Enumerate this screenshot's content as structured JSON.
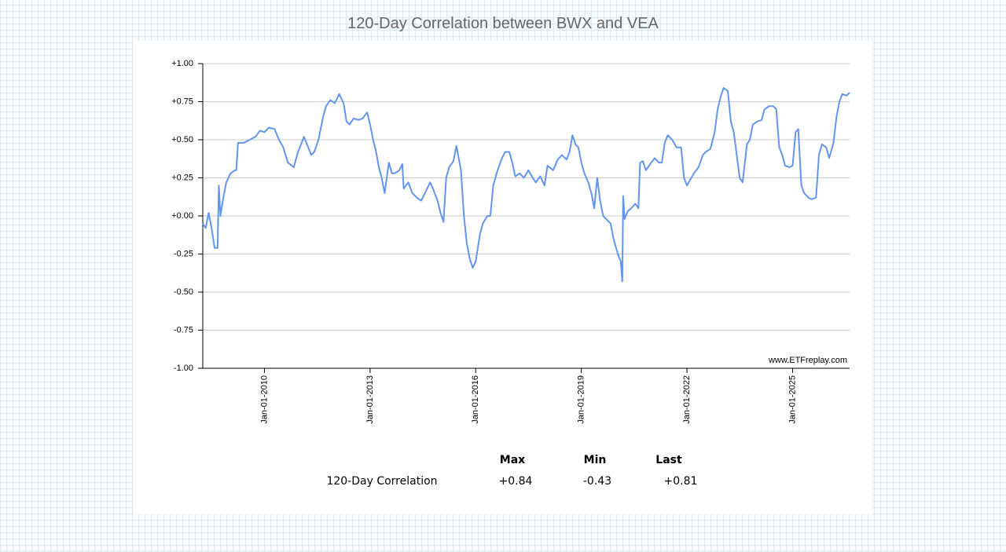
{
  "chart_data": {
    "type": "line",
    "title": "120-Day Correlation between BWX and VEA",
    "annotation": "www.ETFreplay.com",
    "color": "#6495ed",
    "grid": true,
    "xlim": [
      "2008-04-01",
      "2026-08-15"
    ],
    "xticks": [
      {
        "value": "2010-01-01",
        "label": "Jan-01-2010"
      },
      {
        "value": "2013-01-01",
        "label": "Jan-01-2013"
      },
      {
        "value": "2016-01-01",
        "label": "Jan-01-2016"
      },
      {
        "value": "2019-01-01",
        "label": "Jan-01-2019"
      },
      {
        "value": "2022-01-01",
        "label": "Jan-01-2022"
      },
      {
        "value": "2025-01-01",
        "label": "Jan-01-2025"
      }
    ],
    "ylim": [
      -1,
      1
    ],
    "yticks": [
      {
        "value": 1,
        "label": "+1.00"
      },
      {
        "value": 0.75,
        "label": "+0.75"
      },
      {
        "value": 0.5,
        "label": "+0.50"
      },
      {
        "value": 0.25,
        "label": "+0.25"
      },
      {
        "value": 0,
        "label": "+0.00"
      },
      {
        "value": -0.25,
        "label": "-0.25"
      },
      {
        "value": -0.5,
        "label": "-0.50"
      },
      {
        "value": -0.75,
        "label": "-0.75"
      },
      {
        "value": -1,
        "label": "-1.00"
      }
    ],
    "x": [
      "2008-04-01",
      "2008-05-01",
      "2008-06-01",
      "2008-07-01",
      "2008-08-01",
      "2008-09-01",
      "2008-09-15",
      "2008-10-01",
      "2008-11-01",
      "2008-12-01",
      "2009-01-15",
      "2009-03-01",
      "2009-03-15",
      "2009-04-01",
      "2009-06-01",
      "2009-08-01",
      "2009-10-01",
      "2009-11-15",
      "2010-01-01",
      "2010-02-15",
      "2010-04-15",
      "2010-06-01",
      "2010-07-15",
      "2010-09-01",
      "2010-11-01",
      "2010-12-15",
      "2011-02-15",
      "2011-04-01",
      "2011-05-01",
      "2011-06-01",
      "2011-07-15",
      "2011-09-01",
      "2011-10-01",
      "2011-11-15",
      "2012-01-01",
      "2012-02-15",
      "2012-04-01",
      "2012-05-01",
      "2012-06-01",
      "2012-07-15",
      "2012-09-01",
      "2012-10-15",
      "2012-12-01",
      "2013-01-01",
      "2013-02-01",
      "2013-03-01",
      "2013-04-01",
      "2013-05-01",
      "2013-06-01",
      "2013-07-15",
      "2013-08-15",
      "2013-09-15",
      "2013-11-01",
      "2013-12-01",
      "2013-12-15",
      "2014-02-01",
      "2014-03-15",
      "2014-05-01",
      "2014-06-15",
      "2014-08-01",
      "2014-09-15",
      "2014-10-15",
      "2014-12-01",
      "2015-01-01",
      "2015-02-01",
      "2015-03-01",
      "2015-04-01",
      "2015-05-15",
      "2015-06-15",
      "2015-08-01",
      "2015-09-01",
      "2015-10-01",
      "2015-11-01",
      "2015-12-01",
      "2016-01-01",
      "2016-02-15",
      "2016-03-15",
      "2016-05-01",
      "2016-06-01",
      "2016-07-01",
      "2016-08-15",
      "2016-10-01",
      "2016-11-01",
      "2016-12-15",
      "2017-01-15",
      "2017-02-15",
      "2017-04-01",
      "2017-05-15",
      "2017-07-01",
      "2017-08-15",
      "2017-09-15",
      "2017-11-01",
      "2017-12-15",
      "2018-01-15",
      "2018-03-15",
      "2018-05-01",
      "2018-06-15",
      "2018-08-01",
      "2018-09-01",
      "2018-10-01",
      "2018-11-01",
      "2018-12-01",
      "2019-01-01",
      "2019-02-01",
      "2019-03-15",
      "2019-04-15",
      "2019-05-15",
      "2019-06-15",
      "2019-07-15",
      "2019-08-15",
      "2019-09-15",
      "2019-11-01",
      "2019-12-01",
      "2020-01-15",
      "2020-02-15",
      "2020-03-01",
      "2020-03-10",
      "2020-03-25",
      "2020-04-25",
      "2020-06-01",
      "2020-07-15",
      "2020-08-15",
      "2020-09-01",
      "2020-10-01",
      "2020-11-01",
      "2020-12-15",
      "2021-02-01",
      "2021-03-15",
      "2021-04-15",
      "2021-05-15",
      "2021-06-15",
      "2021-08-01",
      "2021-09-15",
      "2021-11-01",
      "2021-12-01",
      "2022-01-01",
      "2022-02-15",
      "2022-03-15",
      "2022-05-01",
      "2022-06-15",
      "2022-07-15",
      "2022-09-01",
      "2022-10-15",
      "2022-11-15",
      "2022-12-15",
      "2023-01-15",
      "2023-03-01",
      "2023-04-01",
      "2023-05-01",
      "2023-06-01",
      "2023-07-01",
      "2023-08-01",
      "2023-09-15",
      "2023-10-15",
      "2023-11-15",
      "2024-01-01",
      "2024-02-15",
      "2024-03-15",
      "2024-05-01",
      "2024-06-15",
      "2024-07-15",
      "2024-08-15",
      "2024-09-15",
      "2024-10-15",
      "2024-12-01",
      "2025-01-01",
      "2025-02-01",
      "2025-03-01",
      "2025-04-01",
      "2025-05-01",
      "2025-06-15",
      "2025-07-15",
      "2025-09-01",
      "2025-10-01",
      "2025-11-01",
      "2025-12-15",
      "2026-01-15",
      "2026-03-01",
      "2026-04-01",
      "2026-05-01",
      "2026-06-01",
      "2026-07-15",
      "2026-08-15"
    ],
    "values": [
      -0.05,
      -0.08,
      0.02,
      -0.08,
      -0.21,
      -0.21,
      0.2,
      0.0,
      0.12,
      0.22,
      0.28,
      0.3,
      0.3,
      0.48,
      0.48,
      0.5,
      0.52,
      0.56,
      0.55,
      0.58,
      0.57,
      0.5,
      0.45,
      0.35,
      0.32,
      0.42,
      0.52,
      0.45,
      0.4,
      0.42,
      0.5,
      0.65,
      0.72,
      0.76,
      0.74,
      0.8,
      0.74,
      0.62,
      0.6,
      0.64,
      0.63,
      0.64,
      0.68,
      0.6,
      0.5,
      0.43,
      0.32,
      0.25,
      0.15,
      0.35,
      0.28,
      0.28,
      0.3,
      0.34,
      0.18,
      0.22,
      0.15,
      0.12,
      0.1,
      0.16,
      0.22,
      0.18,
      0.1,
      0.02,
      -0.04,
      0.25,
      0.32,
      0.36,
      0.46,
      0.3,
      0.0,
      -0.18,
      -0.28,
      -0.34,
      -0.3,
      -0.12,
      -0.05,
      0.0,
      0.0,
      0.2,
      0.3,
      0.38,
      0.42,
      0.42,
      0.35,
      0.26,
      0.28,
      0.25,
      0.3,
      0.25,
      0.22,
      0.26,
      0.2,
      0.33,
      0.3,
      0.37,
      0.4,
      0.37,
      0.42,
      0.53,
      0.47,
      0.45,
      0.35,
      0.28,
      0.22,
      0.15,
      0.05,
      0.25,
      0.1,
      0.0,
      -0.02,
      -0.05,
      -0.15,
      -0.25,
      -0.3,
      -0.43,
      0.13,
      -0.02,
      0.03,
      0.05,
      0.08,
      0.05,
      0.35,
      0.36,
      0.3,
      0.34,
      0.38,
      0.35,
      0.35,
      0.48,
      0.53,
      0.5,
      0.45,
      0.45,
      0.25,
      0.2,
      0.25,
      0.28,
      0.32,
      0.4,
      0.42,
      0.44,
      0.55,
      0.7,
      0.78,
      0.84,
      0.82,
      0.62,
      0.55,
      0.4,
      0.25,
      0.22,
      0.47,
      0.5,
      0.6,
      0.62,
      0.63,
      0.7,
      0.72,
      0.72,
      0.7,
      0.45,
      0.4,
      0.33,
      0.32,
      0.33,
      0.55,
      0.57,
      0.2,
      0.15,
      0.12,
      0.11,
      0.12,
      0.4,
      0.47,
      0.45,
      0.38,
      0.48,
      0.65,
      0.75,
      0.8,
      0.79,
      0.81
    ]
  },
  "table": {
    "columns": [
      "Max",
      "Min",
      "Last"
    ],
    "rows": [
      {
        "label": "120-Day Correlation",
        "cells": [
          "+0.84",
          "-0.43",
          "+0.81"
        ]
      }
    ]
  }
}
